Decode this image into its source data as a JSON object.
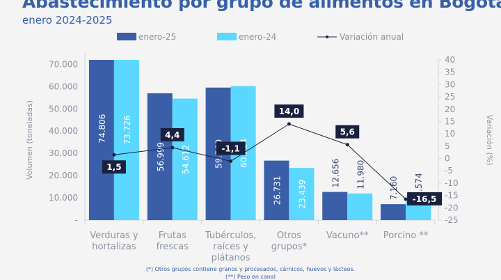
{
  "title": "Abastecimiento por grupo de alimentos en Bogota",
  "subtitle": "enero 2024-2025",
  "footnotes": [
    "(*) Otros grupos contiene granos y procesados, cárnicos, huevos y lácteos.",
    "(**) Peso en canal"
  ],
  "colors": {
    "enero25": "#3a5fa8",
    "enero24": "#5ad8ff",
    "line": "#1a2140",
    "label_box": "#1a2140",
    "axis_text": "#8a93a0"
  },
  "chart_data": {
    "type": "bar+line",
    "categories": [
      [
        "Verduras y",
        "hortalizas"
      ],
      [
        "Frutas",
        "frescas"
      ],
      [
        "Tubérculos,",
        "raíces y",
        "plátanos"
      ],
      [
        "Otros",
        "grupos*"
      ],
      [
        "Vacuno**"
      ],
      [
        "Porcino **"
      ]
    ],
    "series": [
      {
        "name": "enero-25",
        "type": "bar",
        "axis": "left",
        "values": [
          74806,
          56999,
          59560,
          26731,
          12656,
          7160
        ],
        "labels": [
          "74.806",
          "56.999",
          "59.560",
          "26.731",
          "12.656",
          "7.160"
        ]
      },
      {
        "name": "enero-24",
        "type": "bar",
        "axis": "left",
        "values": [
          73726,
          54612,
          60224,
          23439,
          11980,
          8574
        ],
        "labels": [
          "73.726",
          "54.612",
          "60.224",
          "23.439",
          "11.980",
          "8.574"
        ]
      },
      {
        "name": "Variación anual",
        "type": "line",
        "axis": "right",
        "values": [
          1.5,
          4.4,
          -1.1,
          14.0,
          5.6,
          -16.5
        ],
        "labels": [
          "1,5",
          "4,4",
          "-1,1",
          "14,0",
          "5,6",
          "-16,5"
        ]
      }
    ],
    "ylabel": "Volumen (toneladas)",
    "y2label": "Variación (%)",
    "ylim": [
      0,
      72000
    ],
    "y2lim": [
      -25,
      40
    ],
    "yticks": [
      "-",
      "10.000",
      "20.000",
      "30.000",
      "40.000",
      "50.000",
      "60.000",
      "70.000"
    ],
    "y2ticks": [
      "-25",
      "-20",
      "-15",
      "-10",
      "-5",
      "0",
      "5",
      "10",
      "15",
      "20",
      "25",
      "30",
      "35",
      "40"
    ],
    "legend": "top"
  }
}
